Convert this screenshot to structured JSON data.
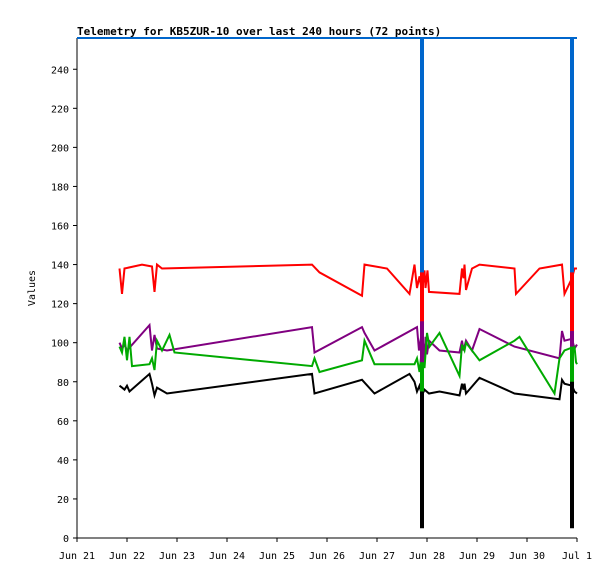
{
  "chart_data": {
    "type": "line",
    "title": "Telemetry for KB5ZUR-10 over last 240 hours (72 points)",
    "xlabel": "",
    "ylabel": "Values",
    "ylim": [
      0,
      256
    ],
    "yticks": [
      0,
      20,
      40,
      60,
      80,
      100,
      120,
      140,
      160,
      180,
      200,
      220,
      240
    ],
    "xlim": [
      "2024-06-21 00:00",
      "2024-07-01 00:00"
    ],
    "xticks": [
      {
        "x": "2024-06-21",
        "label": "Jun 21"
      },
      {
        "x": "2024-06-22",
        "label": "Jun 22"
      },
      {
        "x": "2024-06-23",
        "label": "Jun 23"
      },
      {
        "x": "2024-06-24",
        "label": "Jun 24"
      },
      {
        "x": "2024-06-25",
        "label": "Jun 25"
      },
      {
        "x": "2024-06-26",
        "label": "Jun 26"
      },
      {
        "x": "2024-06-27",
        "label": "Jun 27"
      },
      {
        "x": "2024-06-28",
        "label": "Jun 28"
      },
      {
        "x": "2024-06-29",
        "label": "Jun 29"
      },
      {
        "x": "2024-06-30",
        "label": "Jun 30"
      },
      {
        "x": "2024-07-01",
        "label": "Jul 1"
      }
    ],
    "grid": false,
    "series": [
      {
        "color": "#ff0000",
        "points": [
          [
            "2024-06-21 20:24",
            138
          ],
          [
            "2024-06-21 21:36",
            125
          ],
          [
            "2024-06-21 22:48",
            138
          ],
          [
            "2024-06-22 07:12",
            140
          ],
          [
            "2024-06-22 12:00",
            139
          ],
          [
            "2024-06-22 13:12",
            126
          ],
          [
            "2024-06-22 14:24",
            140
          ],
          [
            "2024-06-22 16:48",
            138
          ],
          [
            "2024-06-25 16:48",
            140
          ],
          [
            "2024-06-25 20:24",
            136
          ],
          [
            "2024-06-26 16:48",
            124
          ],
          [
            "2024-06-26 18:00",
            140
          ],
          [
            "2024-06-27 04:48",
            138
          ],
          [
            "2024-06-27 15:36",
            125
          ],
          [
            "2024-06-27 18:00",
            140
          ],
          [
            "2024-06-27 19:12",
            128
          ],
          [
            "2024-06-27 20:24",
            134
          ],
          [
            "2024-06-27 21:36",
            126
          ],
          [
            "2024-06-27 22:48",
            137
          ],
          [
            "2024-06-27 23:16",
            128
          ],
          [
            "2024-06-28 00:14",
            137
          ],
          [
            "2024-06-28 00:58",
            126
          ],
          [
            "2024-06-28 15:36",
            125
          ],
          [
            "2024-06-28 16:48",
            138
          ],
          [
            "2024-06-28 17:31",
            133
          ],
          [
            "2024-06-28 18:00",
            140
          ],
          [
            "2024-06-28 18:43",
            127
          ],
          [
            "2024-06-28 21:36",
            138
          ],
          [
            "2024-06-29 01:12",
            140
          ],
          [
            "2024-06-29 18:00",
            138
          ],
          [
            "2024-06-29 18:43",
            125
          ],
          [
            "2024-06-30 06:00",
            138
          ],
          [
            "2024-06-30 16:48",
            140
          ],
          [
            "2024-06-30 18:00",
            125
          ],
          [
            "2024-06-30 21:36",
            133
          ],
          [
            "2024-06-30 22:48",
            138
          ],
          [
            "2024-07-01 00:00",
            138
          ]
        ]
      },
      {
        "color": "#800080",
        "points": [
          [
            "2024-06-21 20:24",
            100
          ],
          [
            "2024-06-21 21:36",
            97
          ],
          [
            "2024-06-21 22:48",
            99
          ],
          [
            "2024-06-22 00:00",
            96
          ],
          [
            "2024-06-22 10:48",
            109
          ],
          [
            "2024-06-22 12:00",
            96
          ],
          [
            "2024-06-22 13:12",
            104
          ],
          [
            "2024-06-22 14:24",
            97
          ],
          [
            "2024-06-22 19:12",
            96
          ],
          [
            "2024-06-25 16:48",
            108
          ],
          [
            "2024-06-25 18:00",
            95
          ],
          [
            "2024-06-26 16:48",
            108
          ],
          [
            "2024-06-26 18:00",
            105
          ],
          [
            "2024-06-26 22:48",
            96
          ],
          [
            "2024-06-27 19:12",
            108
          ],
          [
            "2024-06-27 20:09",
            96
          ],
          [
            "2024-06-27 21:36",
            106
          ],
          [
            "2024-06-27 22:48",
            91
          ],
          [
            "2024-06-27 23:16",
            103
          ],
          [
            "2024-06-28 00:00",
            94
          ],
          [
            "2024-06-28 00:58",
            101
          ],
          [
            "2024-06-28 06:00",
            96
          ],
          [
            "2024-06-28 15:36",
            95
          ],
          [
            "2024-06-28 16:48",
            101
          ],
          [
            "2024-06-28 17:31",
            96
          ],
          [
            "2024-06-28 18:43",
            101
          ],
          [
            "2024-06-28 21:36",
            96
          ],
          [
            "2024-06-29 01:12",
            107
          ],
          [
            "2024-06-29 18:00",
            98
          ],
          [
            "2024-06-30 15:36",
            92
          ],
          [
            "2024-06-30 16:48",
            106
          ],
          [
            "2024-06-30 18:00",
            101
          ],
          [
            "2024-06-30 21:36",
            102
          ],
          [
            "2024-06-30 22:48",
            97
          ],
          [
            "2024-07-01 00:00",
            99
          ]
        ]
      },
      {
        "color": "#00aa00",
        "points": [
          [
            "2024-06-21 20:24",
            98
          ],
          [
            "2024-06-21 21:36",
            95
          ],
          [
            "2024-06-21 22:48",
            103
          ],
          [
            "2024-06-22 00:00",
            91
          ],
          [
            "2024-06-22 01:12",
            103
          ],
          [
            "2024-06-22 02:24",
            88
          ],
          [
            "2024-06-22 10:48",
            89
          ],
          [
            "2024-06-22 12:00",
            92
          ],
          [
            "2024-06-22 13:12",
            86
          ],
          [
            "2024-06-22 14:24",
            101
          ],
          [
            "2024-06-22 16:48",
            96
          ],
          [
            "2024-06-22 20:24",
            104
          ],
          [
            "2024-06-22 22:48",
            95
          ],
          [
            "2024-06-25 16:48",
            88
          ],
          [
            "2024-06-25 18:00",
            92
          ],
          [
            "2024-06-25 20:24",
            85
          ],
          [
            "2024-06-26 16:48",
            91
          ],
          [
            "2024-06-26 18:00",
            101
          ],
          [
            "2024-06-26 22:48",
            89
          ],
          [
            "2024-06-27 18:00",
            89
          ],
          [
            "2024-06-27 19:12",
            92
          ],
          [
            "2024-06-27 20:24",
            85
          ],
          [
            "2024-06-27 21:36",
            97
          ],
          [
            "2024-06-27 22:48",
            87
          ],
          [
            "2024-06-28 00:00",
            105
          ],
          [
            "2024-06-28 01:12",
            98
          ],
          [
            "2024-06-28 06:00",
            105
          ],
          [
            "2024-06-28 15:36",
            83
          ],
          [
            "2024-06-28 16:48",
            99
          ],
          [
            "2024-06-28 18:00",
            96
          ],
          [
            "2024-06-28 18:43",
            100
          ],
          [
            "2024-06-29 01:12",
            91
          ],
          [
            "2024-06-29 18:00",
            101
          ],
          [
            "2024-06-29 20:24",
            103
          ],
          [
            "2024-06-30 13:12",
            74
          ],
          [
            "2024-06-30 15:36",
            92
          ],
          [
            "2024-06-30 18:00",
            96
          ],
          [
            "2024-06-30 22:48",
            98
          ],
          [
            "2024-06-30 23:31",
            90
          ],
          [
            "2024-07-01 00:00",
            89
          ]
        ]
      },
      {
        "color": "#000000",
        "points": [
          [
            "2024-06-21 20:24",
            78
          ],
          [
            "2024-06-21 21:36",
            77
          ],
          [
            "2024-06-21 22:48",
            76
          ],
          [
            "2024-06-22 00:00",
            78
          ],
          [
            "2024-06-22 01:12",
            75
          ],
          [
            "2024-06-22 10:48",
            84
          ],
          [
            "2024-06-22 12:00",
            79
          ],
          [
            "2024-06-22 13:12",
            73
          ],
          [
            "2024-06-22 14:24",
            77
          ],
          [
            "2024-06-22 19:12",
            74
          ],
          [
            "2024-06-25 16:48",
            84
          ],
          [
            "2024-06-25 18:00",
            74
          ],
          [
            "2024-06-26 16:48",
            81
          ],
          [
            "2024-06-26 22:48",
            74
          ],
          [
            "2024-06-27 15:36",
            84
          ],
          [
            "2024-06-27 18:00",
            80
          ],
          [
            "2024-06-27 19:12",
            75
          ],
          [
            "2024-06-27 20:24",
            78
          ],
          [
            "2024-06-27 21:36",
            73
          ],
          [
            "2024-06-27 22:48",
            76
          ],
          [
            "2024-06-28 00:58",
            74
          ],
          [
            "2024-06-28 06:00",
            75
          ],
          [
            "2024-06-28 15:36",
            73
          ],
          [
            "2024-06-28 16:48",
            79
          ],
          [
            "2024-06-28 17:31",
            76
          ],
          [
            "2024-06-28 18:00",
            79
          ],
          [
            "2024-06-28 18:43",
            74
          ],
          [
            "2024-06-29 01:12",
            82
          ],
          [
            "2024-06-29 18:00",
            74
          ],
          [
            "2024-06-30 15:36",
            71
          ],
          [
            "2024-06-30 16:48",
            81
          ],
          [
            "2024-06-30 18:00",
            79
          ],
          [
            "2024-06-30 21:36",
            78
          ],
          [
            "2024-06-30 22:48",
            75
          ],
          [
            "2024-07-01 00:00",
            74
          ]
        ]
      }
    ],
    "spikes": [
      {
        "x": "2024-06-27 21:36",
        "ymin": 5,
        "ymax": 256,
        "series": [
          {
            "color": "#0066cc",
            "low": 94,
            "high": 256
          },
          {
            "color": "#ff0000",
            "low": 94,
            "high": 136
          },
          {
            "color": "#800080",
            "low": 70,
            "high": 111
          },
          {
            "color": "#00aa00",
            "low": 72,
            "high": 90
          },
          {
            "color": "#000000",
            "low": 5,
            "high": 75
          }
        ]
      },
      {
        "x": "2024-06-30 21:36",
        "ymin": 5,
        "ymax": 256,
        "series": [
          {
            "color": "#0066cc",
            "low": 99,
            "high": 256
          },
          {
            "color": "#ff0000",
            "low": 96,
            "high": 136
          },
          {
            "color": "#800080",
            "low": 78,
            "high": 106
          },
          {
            "color": "#00aa00",
            "low": 62,
            "high": 98
          },
          {
            "color": "#000000",
            "low": 5,
            "high": 80
          }
        ]
      }
    ],
    "top_line": {
      "color": "#0066cc",
      "y": 256
    }
  }
}
